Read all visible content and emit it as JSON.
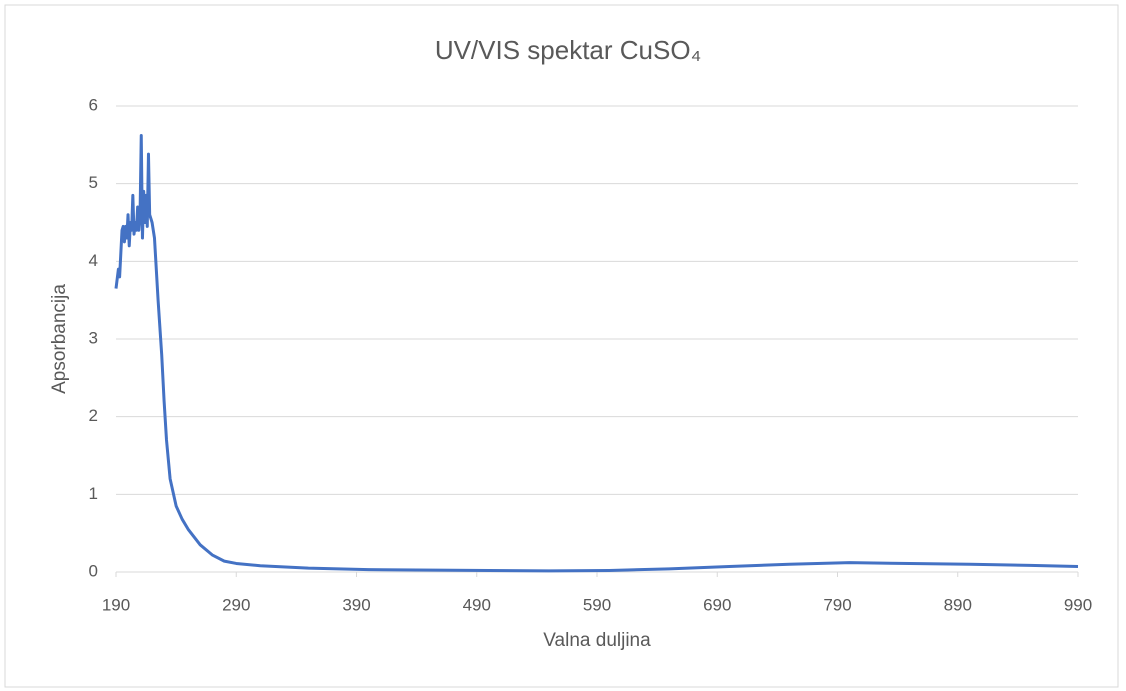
{
  "chart_data": {
    "type": "line",
    "title": "UV/VIS spektar CuSO₄",
    "x_label": "Valna duljina",
    "y_label": "Apsorbancija",
    "xlim": [
      190,
      990
    ],
    "xticks": [
      190,
      290,
      390,
      490,
      590,
      690,
      790,
      890,
      990
    ],
    "ylim": [
      0,
      6
    ],
    "yticks": [
      0,
      1,
      2,
      3,
      4,
      5,
      6
    ],
    "grid": true,
    "x": [
      190,
      192,
      193,
      195,
      196,
      197,
      198,
      199,
      200,
      201,
      202,
      203,
      204,
      205,
      206,
      207,
      208,
      209,
      210,
      211,
      212,
      213,
      214,
      215,
      216,
      217,
      218,
      219,
      220,
      222,
      225,
      228,
      230,
      232,
      235,
      240,
      245,
      250,
      260,
      270,
      280,
      290,
      310,
      350,
      400,
      500,
      550,
      600,
      650,
      700,
      750,
      800,
      850,
      900,
      950,
      990
    ],
    "series": [
      {
        "name": "CuSO₄",
        "color": "#4472c4",
        "values": [
          3.65,
          3.9,
          3.8,
          4.4,
          4.45,
          4.25,
          4.45,
          4.3,
          4.6,
          4.2,
          4.5,
          4.4,
          4.85,
          4.35,
          4.5,
          4.4,
          4.7,
          4.4,
          4.6,
          5.62,
          4.3,
          4.9,
          4.5,
          4.85,
          4.45,
          5.38,
          4.6,
          4.55,
          4.5,
          4.3,
          3.5,
          2.8,
          2.2,
          1.7,
          1.2,
          0.85,
          0.68,
          0.55,
          0.35,
          0.22,
          0.14,
          0.11,
          0.08,
          0.05,
          0.03,
          0.02,
          0.015,
          0.02,
          0.04,
          0.07,
          0.1,
          0.12,
          0.11,
          0.1,
          0.085,
          0.07
        ]
      }
    ]
  }
}
